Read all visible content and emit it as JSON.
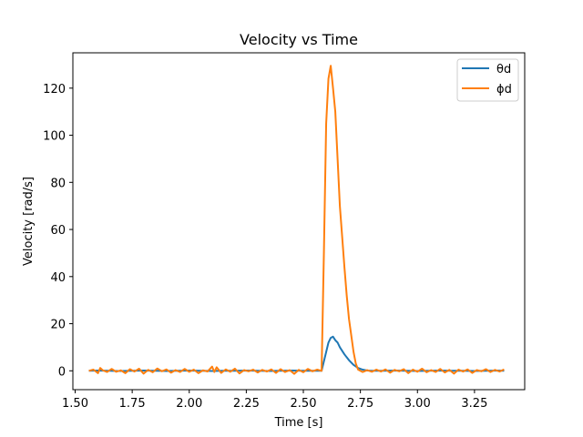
{
  "chart_data": {
    "type": "line",
    "title": "Velocity vs Time",
    "xlabel": "Time [s]",
    "ylabel": "Velocity [rad/s]",
    "xlim": [
      1.49,
      3.47
    ],
    "ylim": [
      -8,
      135
    ],
    "xticks": [
      1.5,
      1.75,
      2.0,
      2.25,
      2.5,
      2.75,
      3.0,
      3.25
    ],
    "xtick_labels": [
      "1.50",
      "1.75",
      "2.00",
      "2.25",
      "2.50",
      "2.75",
      "3.00",
      "3.25"
    ],
    "yticks": [
      0,
      20,
      40,
      60,
      80,
      100,
      120
    ],
    "ytick_labels": [
      "0",
      "20",
      "40",
      "60",
      "80",
      "100",
      "120"
    ],
    "grid": false,
    "legend_position": "top-right",
    "series": [
      {
        "name": "θd",
        "color": "#1f77b4",
        "points": [
          [
            1.56,
            0.0
          ],
          [
            1.6,
            0.1
          ],
          [
            1.65,
            0.0
          ],
          [
            1.7,
            -0.1
          ],
          [
            1.75,
            0.0
          ],
          [
            1.8,
            0.1
          ],
          [
            1.85,
            0.0
          ],
          [
            1.9,
            -0.1
          ],
          [
            1.95,
            0.0
          ],
          [
            2.0,
            0.1
          ],
          [
            2.05,
            0.0
          ],
          [
            2.1,
            -0.1
          ],
          [
            2.15,
            0.0
          ],
          [
            2.2,
            0.0
          ],
          [
            2.25,
            0.1
          ],
          [
            2.3,
            0.0
          ],
          [
            2.35,
            -0.1
          ],
          [
            2.4,
            0.0
          ],
          [
            2.45,
            0.1
          ],
          [
            2.5,
            0.0
          ],
          [
            2.55,
            0.0
          ],
          [
            2.58,
            0.0
          ],
          [
            2.59,
            4.0
          ],
          [
            2.6,
            8.0
          ],
          [
            2.61,
            12.0
          ],
          [
            2.62,
            14.0
          ],
          [
            2.63,
            14.5
          ],
          [
            2.64,
            13.0
          ],
          [
            2.65,
            12.0
          ],
          [
            2.66,
            10.0
          ],
          [
            2.68,
            7.0
          ],
          [
            2.7,
            4.5
          ],
          [
            2.72,
            2.5
          ],
          [
            2.74,
            1.2
          ],
          [
            2.76,
            0.5
          ],
          [
            2.78,
            0.1
          ],
          [
            2.8,
            0.0
          ],
          [
            2.85,
            0.0
          ],
          [
            2.9,
            0.1
          ],
          [
            2.95,
            0.0
          ],
          [
            3.0,
            -0.1
          ],
          [
            3.05,
            0.0
          ],
          [
            3.1,
            0.1
          ],
          [
            3.15,
            0.0
          ],
          [
            3.2,
            0.0
          ],
          [
            3.25,
            -0.1
          ],
          [
            3.3,
            0.0
          ],
          [
            3.35,
            0.1
          ],
          [
            3.38,
            0.0
          ]
        ]
      },
      {
        "name": "ϕd",
        "color": "#ff7f0e",
        "points": [
          [
            1.56,
            0.0
          ],
          [
            1.58,
            0.5
          ],
          [
            1.6,
            -1.0
          ],
          [
            1.61,
            1.2
          ],
          [
            1.62,
            0.3
          ],
          [
            1.64,
            -0.5
          ],
          [
            1.66,
            0.8
          ],
          [
            1.68,
            -0.4
          ],
          [
            1.7,
            0.2
          ],
          [
            1.72,
            -1.0
          ],
          [
            1.74,
            0.7
          ],
          [
            1.76,
            -0.3
          ],
          [
            1.78,
            0.9
          ],
          [
            1.8,
            -1.2
          ],
          [
            1.82,
            0.4
          ],
          [
            1.84,
            -0.6
          ],
          [
            1.86,
            1.0
          ],
          [
            1.88,
            -0.2
          ],
          [
            1.9,
            0.6
          ],
          [
            1.92,
            -0.8
          ],
          [
            1.94,
            0.3
          ],
          [
            1.96,
            -0.5
          ],
          [
            1.98,
            0.8
          ],
          [
            2.0,
            -0.4
          ],
          [
            2.02,
            0.5
          ],
          [
            2.04,
            -1.0
          ],
          [
            2.06,
            0.2
          ],
          [
            2.08,
            -0.3
          ],
          [
            2.1,
            1.8
          ],
          [
            2.11,
            -0.5
          ],
          [
            2.12,
            1.5
          ],
          [
            2.14,
            -0.9
          ],
          [
            2.16,
            0.6
          ],
          [
            2.18,
            -0.4
          ],
          [
            2.2,
            0.9
          ],
          [
            2.22,
            -1.1
          ],
          [
            2.24,
            0.3
          ],
          [
            2.26,
            -0.2
          ],
          [
            2.28,
            0.5
          ],
          [
            2.3,
            -0.7
          ],
          [
            2.32,
            0.4
          ],
          [
            2.34,
            -0.3
          ],
          [
            2.36,
            0.6
          ],
          [
            2.38,
            -0.9
          ],
          [
            2.4,
            0.7
          ],
          [
            2.42,
            -0.5
          ],
          [
            2.44,
            0.3
          ],
          [
            2.46,
            -1.3
          ],
          [
            2.48,
            0.4
          ],
          [
            2.5,
            -0.6
          ],
          [
            2.52,
            0.8
          ],
          [
            2.54,
            -0.2
          ],
          [
            2.56,
            0.5
          ],
          [
            2.58,
            0.0
          ],
          [
            2.59,
            50.0
          ],
          [
            2.6,
            105.0
          ],
          [
            2.61,
            124.0
          ],
          [
            2.62,
            129.5
          ],
          [
            2.63,
            120.0
          ],
          [
            2.64,
            110.0
          ],
          [
            2.65,
            90.0
          ],
          [
            2.66,
            70.0
          ],
          [
            2.67,
            57.0
          ],
          [
            2.68,
            44.0
          ],
          [
            2.69,
            32.0
          ],
          [
            2.7,
            22.0
          ],
          [
            2.71,
            15.0
          ],
          [
            2.72,
            8.0
          ],
          [
            2.73,
            3.0
          ],
          [
            2.74,
            0.5
          ],
          [
            2.76,
            -0.5
          ],
          [
            2.78,
            0.3
          ],
          [
            2.8,
            -0.4
          ],
          [
            2.82,
            0.5
          ],
          [
            2.84,
            -0.3
          ],
          [
            2.86,
            0.6
          ],
          [
            2.88,
            -0.8
          ],
          [
            2.9,
            0.4
          ],
          [
            2.92,
            -0.2
          ],
          [
            2.94,
            0.7
          ],
          [
            2.96,
            -1.0
          ],
          [
            2.98,
            0.5
          ],
          [
            3.0,
            -0.4
          ],
          [
            3.02,
            0.9
          ],
          [
            3.04,
            -0.6
          ],
          [
            3.06,
            0.3
          ],
          [
            3.08,
            -0.5
          ],
          [
            3.1,
            0.8
          ],
          [
            3.12,
            -0.7
          ],
          [
            3.14,
            0.4
          ],
          [
            3.16,
            -1.2
          ],
          [
            3.18,
            0.5
          ],
          [
            3.2,
            -0.3
          ],
          [
            3.22,
            0.6
          ],
          [
            3.24,
            -0.9
          ],
          [
            3.26,
            0.3
          ],
          [
            3.28,
            -0.2
          ],
          [
            3.3,
            0.7
          ],
          [
            3.32,
            -0.5
          ],
          [
            3.34,
            0.4
          ],
          [
            3.36,
            -0.3
          ],
          [
            3.38,
            0.6
          ]
        ]
      }
    ]
  }
}
